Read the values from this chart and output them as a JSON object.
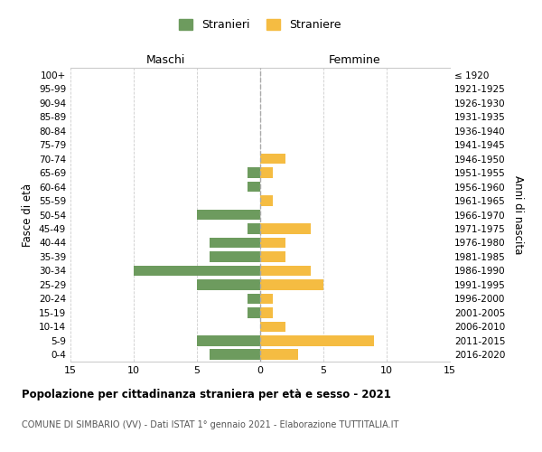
{
  "age_groups": [
    "100+",
    "95-99",
    "90-94",
    "85-89",
    "80-84",
    "75-79",
    "70-74",
    "65-69",
    "60-64",
    "55-59",
    "50-54",
    "45-49",
    "40-44",
    "35-39",
    "30-34",
    "25-29",
    "20-24",
    "15-19",
    "10-14",
    "5-9",
    "0-4"
  ],
  "birth_years": [
    "≤ 1920",
    "1921-1925",
    "1926-1930",
    "1931-1935",
    "1936-1940",
    "1941-1945",
    "1946-1950",
    "1951-1955",
    "1956-1960",
    "1961-1965",
    "1966-1970",
    "1971-1975",
    "1976-1980",
    "1981-1985",
    "1986-1990",
    "1991-1995",
    "1996-2000",
    "2001-2005",
    "2006-2010",
    "2011-2015",
    "2016-2020"
  ],
  "stranieri": [
    0,
    0,
    0,
    0,
    0,
    0,
    0,
    1,
    1,
    0,
    5,
    1,
    4,
    4,
    10,
    5,
    1,
    1,
    0,
    5,
    4
  ],
  "straniere": [
    0,
    0,
    0,
    0,
    0,
    0,
    2,
    1,
    0,
    1,
    0,
    4,
    2,
    2,
    4,
    5,
    1,
    1,
    2,
    9,
    3
  ],
  "stranieri_color": "#6d9b5e",
  "straniere_color": "#f5bc42",
  "xlim": 15,
  "title": "Popolazione per cittadinanza straniera per età e sesso - 2021",
  "subtitle": "COMUNE DI SIMBARIO (VV) - Dati ISTAT 1° gennaio 2021 - Elaborazione TUTTITALIA.IT",
  "ylabel_left": "Fasce di età",
  "ylabel_right": "Anni di nascita",
  "xlabel_left": "Maschi",
  "xlabel_right": "Femmine",
  "legend_stranieri": "Stranieri",
  "legend_straniere": "Straniere",
  "background_color": "#ffffff",
  "grid_color": "#cccccc",
  "bar_height": 0.75
}
